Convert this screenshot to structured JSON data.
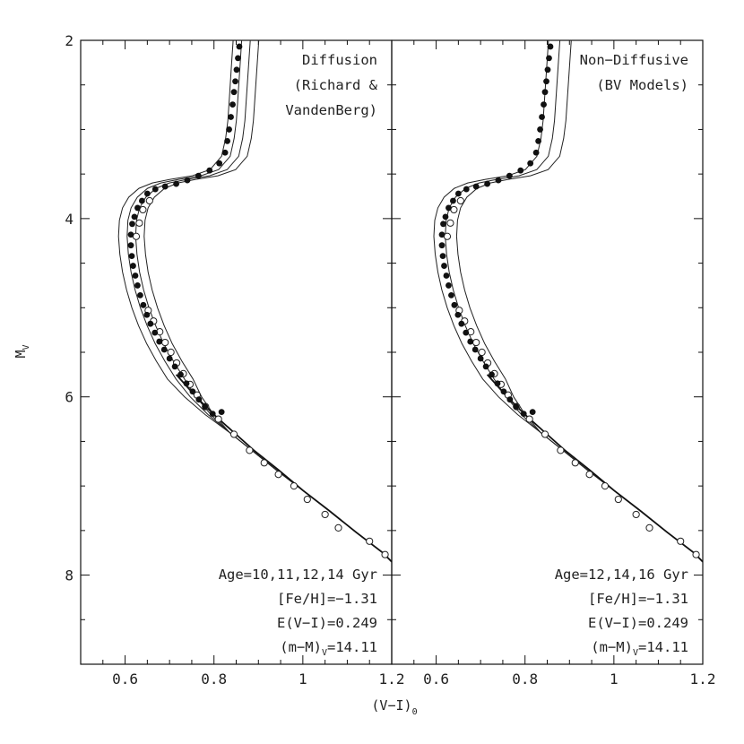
{
  "chart_data": {
    "type": "scatter",
    "y_axis_label": "M",
    "y_axis_label_sub": "V",
    "x_axis_label": "(V−I)",
    "x_axis_label_sub": "0",
    "y_range": [
      2,
      9
    ],
    "y_inverted": true,
    "y_ticks": [
      2,
      4,
      6,
      8
    ],
    "y_tick_labels": [
      "2",
      "4",
      "6",
      "8"
    ],
    "x_range": [
      0.5,
      1.2
    ],
    "x_ticks": [
      0.6,
      0.8,
      1.0,
      1.2
    ],
    "x_tick_labels": [
      "0.6",
      "0.8",
      "1",
      "1.2"
    ],
    "panels": [
      {
        "id": "left",
        "title_lines": [
          "Diffusion",
          "(Richard &",
          "VandenBerg)"
        ],
        "notes": [
          {
            "text": "Age=10,11,12,14 Gyr"
          },
          {
            "text": "[Fe/H]=−1.31"
          },
          {
            "text": "E(V−I)=0.249"
          },
          {
            "text": "(m−M)",
            "sub": "V",
            "tail": "=14.11"
          }
        ],
        "isochrone_offsets": [
          -0.018,
          -0.006,
          0.006,
          0.018
        ],
        "filled_points": [
          [
            0.857,
            2.07
          ],
          [
            0.854,
            2.2
          ],
          [
            0.851,
            2.33
          ],
          [
            0.848,
            2.46
          ],
          [
            0.845,
            2.58
          ],
          [
            0.842,
            2.72
          ],
          [
            0.838,
            2.86
          ],
          [
            0.834,
            3.0
          ],
          [
            0.83,
            3.13
          ],
          [
            0.825,
            3.26
          ],
          [
            0.812,
            3.38
          ],
          [
            0.79,
            3.46
          ],
          [
            0.765,
            3.52
          ],
          [
            0.74,
            3.57
          ],
          [
            0.715,
            3.61
          ],
          [
            0.69,
            3.64
          ],
          [
            0.668,
            3.67
          ],
          [
            0.65,
            3.72
          ],
          [
            0.638,
            3.8
          ],
          [
            0.628,
            3.88
          ],
          [
            0.621,
            3.98
          ],
          [
            0.616,
            4.06
          ],
          [
            0.613,
            4.18
          ],
          [
            0.613,
            4.3
          ],
          [
            0.615,
            4.42
          ],
          [
            0.618,
            4.53
          ],
          [
            0.623,
            4.64
          ],
          [
            0.628,
            4.75
          ],
          [
            0.634,
            4.86
          ],
          [
            0.641,
            4.97
          ],
          [
            0.649,
            5.08
          ],
          [
            0.657,
            5.18
          ],
          [
            0.667,
            5.28
          ],
          [
            0.677,
            5.38
          ],
          [
            0.688,
            5.47
          ],
          [
            0.7,
            5.57
          ],
          [
            0.712,
            5.66
          ],
          [
            0.725,
            5.75
          ],
          [
            0.738,
            5.85
          ],
          [
            0.752,
            5.94
          ],
          [
            0.766,
            6.03
          ],
          [
            0.78,
            6.11
          ],
          [
            0.797,
            6.19
          ],
          [
            0.817,
            6.17
          ]
        ],
        "open_points": [
          [
            0.655,
            3.8
          ],
          [
            0.64,
            3.9
          ],
          [
            0.632,
            4.05
          ],
          [
            0.625,
            4.2
          ],
          [
            0.652,
            5.03
          ],
          [
            0.664,
            5.15
          ],
          [
            0.678,
            5.27
          ],
          [
            0.69,
            5.39
          ],
          [
            0.703,
            5.5
          ],
          [
            0.716,
            5.62
          ],
          [
            0.731,
            5.74
          ],
          [
            0.746,
            5.86
          ],
          [
            0.762,
            5.98
          ],
          [
            0.781,
            6.11
          ],
          [
            0.81,
            6.25
          ],
          [
            0.845,
            6.42
          ],
          [
            0.88,
            6.6
          ],
          [
            0.913,
            6.74
          ],
          [
            0.945,
            6.87
          ],
          [
            0.98,
            7.0
          ],
          [
            1.01,
            7.15
          ],
          [
            1.05,
            7.32
          ],
          [
            1.08,
            7.47
          ],
          [
            1.15,
            7.62
          ],
          [
            1.185,
            7.77
          ]
        ]
      },
      {
        "id": "right",
        "title_lines": [
          "Non−Diffusive",
          "(BV Models)"
        ],
        "notes": [
          {
            "text": "Age=12,14,16 Gyr"
          },
          {
            "text": "[Fe/H]=−1.31"
          },
          {
            "text": "E(V−I)=0.249"
          },
          {
            "text": "(m−M)",
            "sub": "V",
            "tail": "=14.11"
          }
        ],
        "isochrone_offsets": [
          -0.012,
          0.004,
          0.02
        ],
        "filled_points": [
          [
            0.857,
            2.07
          ],
          [
            0.854,
            2.2
          ],
          [
            0.851,
            2.33
          ],
          [
            0.848,
            2.46
          ],
          [
            0.845,
            2.58
          ],
          [
            0.842,
            2.72
          ],
          [
            0.838,
            2.86
          ],
          [
            0.834,
            3.0
          ],
          [
            0.83,
            3.13
          ],
          [
            0.825,
            3.26
          ],
          [
            0.812,
            3.38
          ],
          [
            0.79,
            3.46
          ],
          [
            0.765,
            3.52
          ],
          [
            0.74,
            3.57
          ],
          [
            0.715,
            3.61
          ],
          [
            0.69,
            3.64
          ],
          [
            0.668,
            3.67
          ],
          [
            0.65,
            3.72
          ],
          [
            0.638,
            3.8
          ],
          [
            0.628,
            3.88
          ],
          [
            0.621,
            3.98
          ],
          [
            0.616,
            4.06
          ],
          [
            0.613,
            4.18
          ],
          [
            0.613,
            4.3
          ],
          [
            0.615,
            4.42
          ],
          [
            0.618,
            4.53
          ],
          [
            0.623,
            4.64
          ],
          [
            0.628,
            4.75
          ],
          [
            0.634,
            4.86
          ],
          [
            0.641,
            4.97
          ],
          [
            0.649,
            5.08
          ],
          [
            0.657,
            5.18
          ],
          [
            0.667,
            5.28
          ],
          [
            0.677,
            5.38
          ],
          [
            0.688,
            5.47
          ],
          [
            0.7,
            5.57
          ],
          [
            0.712,
            5.66
          ],
          [
            0.725,
            5.75
          ],
          [
            0.738,
            5.85
          ],
          [
            0.752,
            5.94
          ],
          [
            0.766,
            6.03
          ],
          [
            0.78,
            6.11
          ],
          [
            0.797,
            6.19
          ],
          [
            0.817,
            6.17
          ]
        ],
        "open_points": [
          [
            0.655,
            3.8
          ],
          [
            0.64,
            3.9
          ],
          [
            0.632,
            4.05
          ],
          [
            0.625,
            4.2
          ],
          [
            0.652,
            5.03
          ],
          [
            0.664,
            5.15
          ],
          [
            0.678,
            5.27
          ],
          [
            0.69,
            5.39
          ],
          [
            0.703,
            5.5
          ],
          [
            0.716,
            5.62
          ],
          [
            0.731,
            5.74
          ],
          [
            0.746,
            5.86
          ],
          [
            0.762,
            5.98
          ],
          [
            0.781,
            6.11
          ],
          [
            0.81,
            6.25
          ],
          [
            0.845,
            6.42
          ],
          [
            0.88,
            6.6
          ],
          [
            0.913,
            6.74
          ],
          [
            0.945,
            6.87
          ],
          [
            0.98,
            7.0
          ],
          [
            1.01,
            7.15
          ],
          [
            1.05,
            7.32
          ],
          [
            1.08,
            7.47
          ],
          [
            1.15,
            7.62
          ],
          [
            1.185,
            7.77
          ]
        ]
      }
    ]
  }
}
